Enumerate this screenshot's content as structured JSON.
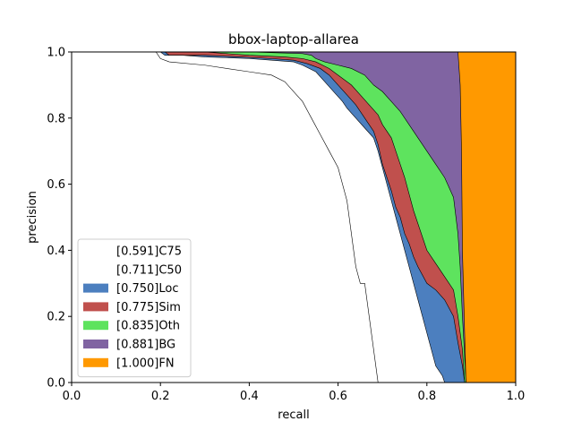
{
  "chart_data": {
    "type": "area",
    "title": "bbox-laptop-allarea",
    "xlabel": "recall",
    "ylabel": "precision",
    "xlim": [
      0,
      1
    ],
    "ylim": [
      0,
      1
    ],
    "x_ticks": [
      "0.0",
      "0.2",
      "0.4",
      "0.6",
      "0.8",
      "1.0"
    ],
    "y_ticks": [
      "0.0",
      "0.2",
      "0.4",
      "0.6",
      "0.8",
      "1.0"
    ],
    "grid": false,
    "legend_position": "lower-left",
    "series": [
      {
        "name": "[0.591]C75",
        "color": "#ffffff",
        "points": [
          [
            0,
            1
          ],
          [
            0.19,
            1
          ],
          [
            0.2,
            0.98
          ],
          [
            0.22,
            0.97
          ],
          [
            0.3,
            0.96
          ],
          [
            0.4,
            0.94
          ],
          [
            0.45,
            0.93
          ],
          [
            0.48,
            0.91
          ],
          [
            0.5,
            0.88
          ],
          [
            0.52,
            0.85
          ],
          [
            0.54,
            0.8
          ],
          [
            0.56,
            0.75
          ],
          [
            0.58,
            0.7
          ],
          [
            0.6,
            0.65
          ],
          [
            0.61,
            0.6
          ],
          [
            0.62,
            0.55
          ],
          [
            0.625,
            0.5
          ],
          [
            0.63,
            0.45
          ],
          [
            0.635,
            0.4
          ],
          [
            0.64,
            0.35
          ],
          [
            0.65,
            0.3
          ],
          [
            0.66,
            0.3
          ],
          [
            0.665,
            0.25
          ],
          [
            0.67,
            0.2
          ],
          [
            0.68,
            0.1
          ],
          [
            0.685,
            0.05
          ],
          [
            0.69,
            0
          ]
        ]
      },
      {
        "name": "[0.711]C50",
        "color": "#ffffff",
        "points": [
          [
            0,
            1
          ],
          [
            0.2,
            1
          ],
          [
            0.21,
            0.99
          ],
          [
            0.25,
            0.99
          ],
          [
            0.3,
            0.985
          ],
          [
            0.4,
            0.98
          ],
          [
            0.45,
            0.975
          ],
          [
            0.5,
            0.97
          ],
          [
            0.52,
            0.96
          ],
          [
            0.55,
            0.94
          ],
          [
            0.57,
            0.91
          ],
          [
            0.59,
            0.88
          ],
          [
            0.61,
            0.85
          ],
          [
            0.62,
            0.83
          ],
          [
            0.64,
            0.8
          ],
          [
            0.66,
            0.77
          ],
          [
            0.68,
            0.74
          ],
          [
            0.69,
            0.7
          ],
          [
            0.7,
            0.65
          ],
          [
            0.71,
            0.6
          ],
          [
            0.72,
            0.55
          ],
          [
            0.73,
            0.5
          ],
          [
            0.74,
            0.45
          ],
          [
            0.75,
            0.4
          ],
          [
            0.76,
            0.35
          ],
          [
            0.77,
            0.3
          ],
          [
            0.78,
            0.25
          ],
          [
            0.79,
            0.2
          ],
          [
            0.8,
            0.15
          ],
          [
            0.81,
            0.1
          ],
          [
            0.82,
            0.05
          ],
          [
            0.835,
            0.02
          ],
          [
            0.84,
            0
          ]
        ]
      },
      {
        "name": "[0.750]Loc",
        "color": "#4c7fbf",
        "points": [
          [
            0,
            1
          ],
          [
            0.21,
            1
          ],
          [
            0.22,
            0.99
          ],
          [
            0.3,
            0.99
          ],
          [
            0.38,
            0.985
          ],
          [
            0.45,
            0.98
          ],
          [
            0.5,
            0.975
          ],
          [
            0.53,
            0.965
          ],
          [
            0.56,
            0.95
          ],
          [
            0.58,
            0.93
          ],
          [
            0.6,
            0.9
          ],
          [
            0.62,
            0.87
          ],
          [
            0.64,
            0.84
          ],
          [
            0.66,
            0.8
          ],
          [
            0.68,
            0.76
          ],
          [
            0.69,
            0.72
          ],
          [
            0.7,
            0.66
          ],
          [
            0.71,
            0.62
          ],
          [
            0.72,
            0.58
          ],
          [
            0.73,
            0.53
          ],
          [
            0.74,
            0.5
          ],
          [
            0.75,
            0.45
          ],
          [
            0.76,
            0.42
          ],
          [
            0.77,
            0.38
          ],
          [
            0.78,
            0.35
          ],
          [
            0.8,
            0.3
          ],
          [
            0.82,
            0.28
          ],
          [
            0.84,
            0.25
          ],
          [
            0.86,
            0.2
          ],
          [
            0.87,
            0.12
          ],
          [
            0.88,
            0.05
          ],
          [
            0.885,
            0
          ]
        ]
      },
      {
        "name": "[0.775]Sim",
        "color": "#c0504d",
        "points": [
          [
            0,
            1
          ],
          [
            0.22,
            1
          ],
          [
            0.3,
            1
          ],
          [
            0.4,
            0.99
          ],
          [
            0.48,
            0.985
          ],
          [
            0.52,
            0.98
          ],
          [
            0.55,
            0.97
          ],
          [
            0.58,
            0.95
          ],
          [
            0.6,
            0.93
          ],
          [
            0.63,
            0.9
          ],
          [
            0.65,
            0.87
          ],
          [
            0.67,
            0.84
          ],
          [
            0.69,
            0.81
          ],
          [
            0.7,
            0.78
          ],
          [
            0.72,
            0.74
          ],
          [
            0.73,
            0.7
          ],
          [
            0.74,
            0.66
          ],
          [
            0.75,
            0.62
          ],
          [
            0.76,
            0.57
          ],
          [
            0.77,
            0.52
          ],
          [
            0.78,
            0.48
          ],
          [
            0.79,
            0.44
          ],
          [
            0.8,
            0.4
          ],
          [
            0.82,
            0.36
          ],
          [
            0.84,
            0.32
          ],
          [
            0.86,
            0.28
          ],
          [
            0.87,
            0.2
          ],
          [
            0.88,
            0.1
          ],
          [
            0.885,
            0
          ]
        ]
      },
      {
        "name": "[0.835]Oth",
        "color": "#5ee35e",
        "points": [
          [
            0,
            1
          ],
          [
            0.4,
            1
          ],
          [
            0.52,
            0.995
          ],
          [
            0.54,
            0.99
          ],
          [
            0.55,
            0.98
          ],
          [
            0.57,
            0.97
          ],
          [
            0.6,
            0.96
          ],
          [
            0.63,
            0.95
          ],
          [
            0.66,
            0.93
          ],
          [
            0.68,
            0.9
          ],
          [
            0.7,
            0.88
          ],
          [
            0.72,
            0.85
          ],
          [
            0.74,
            0.82
          ],
          [
            0.76,
            0.78
          ],
          [
            0.78,
            0.74
          ],
          [
            0.8,
            0.7
          ],
          [
            0.82,
            0.66
          ],
          [
            0.84,
            0.62
          ],
          [
            0.86,
            0.56
          ],
          [
            0.87,
            0.45
          ],
          [
            0.875,
            0.35
          ],
          [
            0.88,
            0.2
          ],
          [
            0.885,
            0.08
          ],
          [
            0.888,
            0
          ]
        ]
      },
      {
        "name": "[0.881]BG",
        "color": "#8064a2",
        "points": [
          [
            0,
            1
          ],
          [
            0.87,
            1
          ],
          [
            0.875,
            0.9
          ],
          [
            0.878,
            0.7
          ],
          [
            0.88,
            0.4
          ],
          [
            0.885,
            0.15
          ],
          [
            0.888,
            0
          ]
        ]
      },
      {
        "name": "[1.000]FN",
        "color": "#ff9900",
        "points": [
          [
            0,
            1
          ],
          [
            1,
            1
          ],
          [
            1,
            0
          ]
        ]
      }
    ]
  }
}
